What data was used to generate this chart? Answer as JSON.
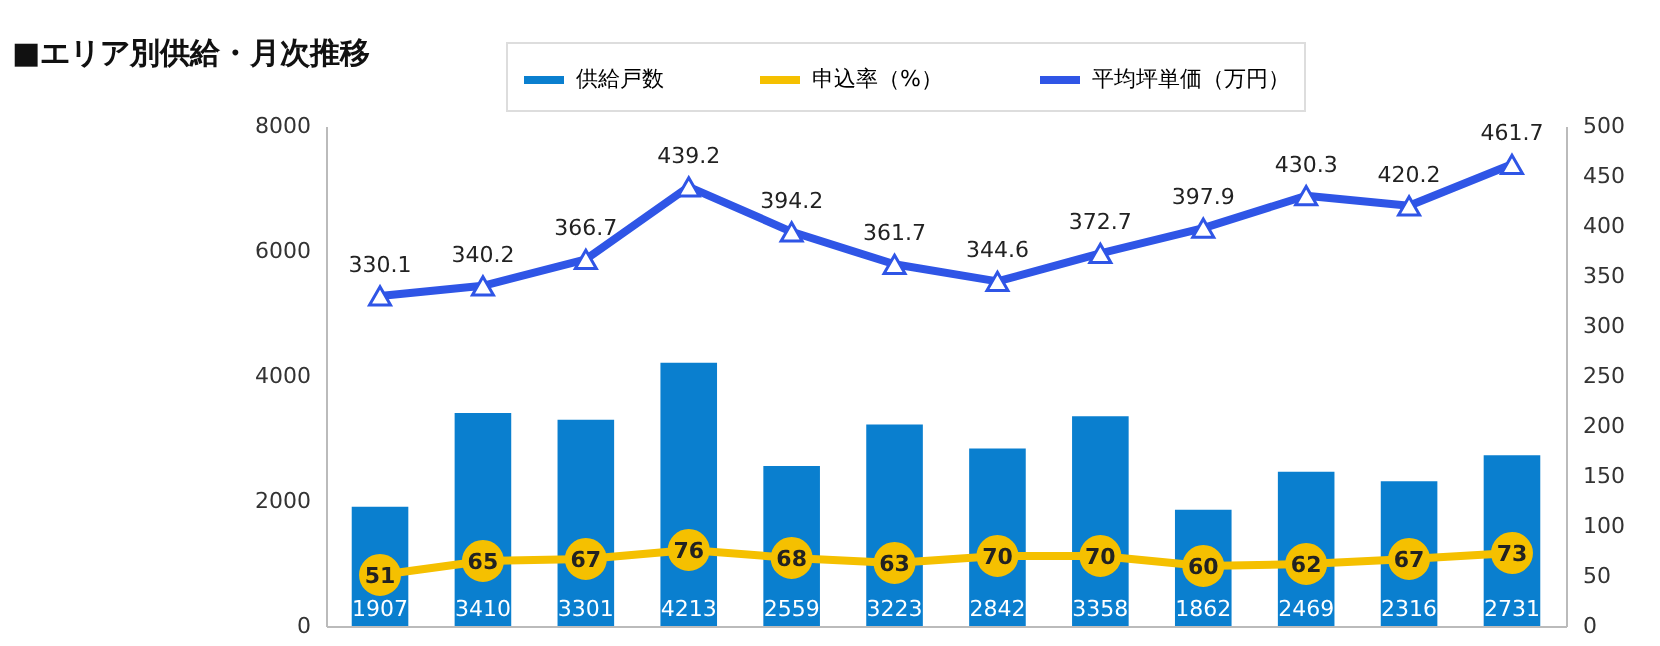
{
  "chart_data": {
    "type": "bar",
    "title": "■エリア別供給・月次推移",
    "categories": [
      null,
      null,
      null,
      null,
      null,
      null,
      null,
      null,
      null,
      null,
      null,
      null
    ],
    "series": [
      {
        "name": "供給戸数",
        "color": "#0a7fcf",
        "values": [
          1907,
          3410,
          3301,
          4213,
          2559,
          3223,
          2842,
          3358,
          1862,
          2469,
          2316,
          2731
        ]
      },
      {
        "name": "申込率（%）",
        "type": "line",
        "axis": "y2",
        "marker": "circle",
        "color": "#f5c000",
        "values": [
          51,
          65,
          67,
          76,
          68,
          63,
          70,
          70,
          60,
          62,
          67,
          73
        ]
      },
      {
        "name": "平均坪単価（万円）",
        "type": "line",
        "axis": "y2",
        "marker": "triangle",
        "color": "#2f55e6",
        "values": [
          330.1,
          340.2,
          366.7,
          439.2,
          394.2,
          361.7,
          344.6,
          372.7,
          397.9,
          430.3,
          420.2,
          461.7
        ]
      }
    ],
    "ylim": [
      0,
      8000
    ],
    "yticks": [
      0,
      2000,
      4000,
      6000,
      8000
    ],
    "y2lim": [
      0,
      500
    ],
    "y2ticks": [
      0,
      50,
      100,
      150,
      200,
      250,
      300,
      350,
      400,
      450,
      500
    ],
    "data_labels": true,
    "legend": "top",
    "grid": false
  }
}
